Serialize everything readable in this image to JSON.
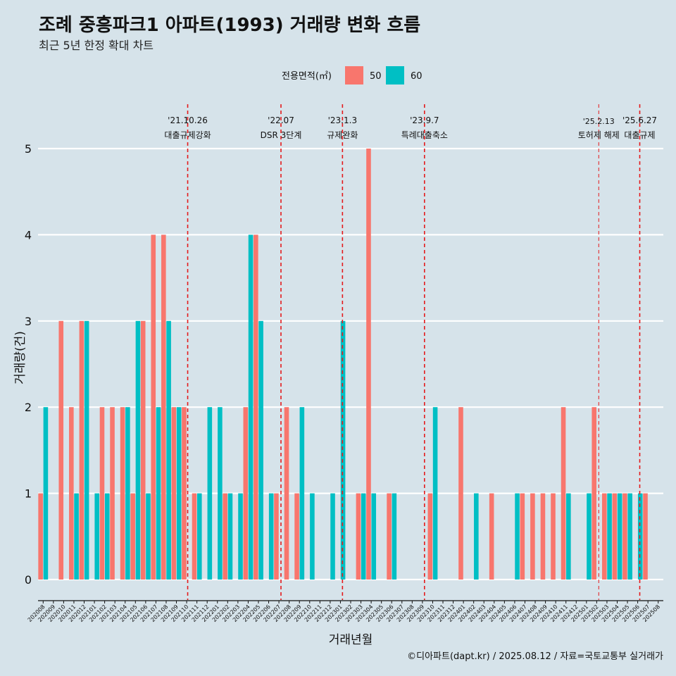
{
  "chart_data": {
    "type": "bar",
    "title": "조례 중흥파크1 아파트(1993) 거래량 변화 흐름",
    "subtitle": "최근 5년 한정 확대 차트",
    "xlabel": "거래년월",
    "ylabel": "거래량(건)",
    "ylim": [
      0,
      5
    ],
    "yticks": [
      0,
      1,
      2,
      3,
      4,
      5
    ],
    "legend": {
      "title": "전용면적(㎡)",
      "position": "top",
      "entries": [
        {
          "name": "50",
          "color": "#F8766D"
        },
        {
          "name": "60",
          "color": "#00BFC4"
        }
      ]
    },
    "categories": [
      "202008",
      "202009",
      "202010",
      "202011",
      "202012",
      "202101",
      "202102",
      "202103",
      "202104",
      "202105",
      "202106",
      "202107",
      "202108",
      "202109",
      "202110",
      "202111",
      "202112",
      "202201",
      "202202",
      "202203",
      "202204",
      "202205",
      "202206",
      "202207",
      "202208",
      "202209",
      "202210",
      "202211",
      "202212",
      "202301",
      "202302",
      "202303",
      "202304",
      "202305",
      "202306",
      "202307",
      "202308",
      "202309",
      "202310",
      "202311",
      "202312",
      "202401",
      "202402",
      "202403",
      "202404",
      "202405",
      "202406",
      "202407",
      "202408",
      "202409",
      "202410",
      "202411",
      "202412",
      "202501",
      "202502",
      "202503",
      "202504",
      "202505",
      "202506",
      "202507",
      "202508"
    ],
    "series": [
      {
        "name": "50",
        "color": "#F8766D",
        "values": [
          1,
          0,
          3,
          2,
          3,
          0,
          2,
          2,
          2,
          1,
          3,
          4,
          4,
          2,
          2,
          1,
          0,
          0,
          1,
          0,
          2,
          4,
          0,
          1,
          2,
          1,
          0,
          0,
          0,
          0,
          0,
          1,
          5,
          0,
          1,
          0,
          0,
          0,
          1,
          0,
          0,
          2,
          0,
          0,
          1,
          0,
          0,
          1,
          1,
          1,
          1,
          2,
          0,
          0,
          2,
          1,
          1,
          1,
          0,
          1,
          0
        ]
      },
      {
        "name": "60",
        "color": "#00BFC4",
        "values": [
          2,
          0,
          0,
          1,
          3,
          1,
          1,
          0,
          2,
          3,
          1,
          2,
          3,
          2,
          0,
          1,
          2,
          2,
          1,
          1,
          4,
          3,
          1,
          0,
          0,
          2,
          1,
          0,
          1,
          3,
          0,
          1,
          1,
          0,
          1,
          0,
          0,
          0,
          2,
          0,
          0,
          0,
          1,
          0,
          0,
          0,
          1,
          0,
          0,
          0,
          0,
          1,
          0,
          1,
          0,
          1,
          1,
          1,
          1,
          0,
          0
        ]
      }
    ],
    "events": [
      {
        "date": "'21.10.26",
        "label": "대출규제강화",
        "position": 14.6
      },
      {
        "date": "'22.07",
        "label": "DSR 3단계",
        "position": 23.7
      },
      {
        "date": "'23.1.3",
        "label": "규제완화",
        "position": 29.7
      },
      {
        "date": "'23.9.7",
        "label": "특례대출축소",
        "position": 37.7
      },
      {
        "date": "'25.2.13",
        "label": "토허제 해제",
        "position": 54.7
      },
      {
        "date": "'25.6.27",
        "label": "대출규제",
        "position": 58.7
      }
    ],
    "caption": "©디아파트(dapt.kr) / 2025.08.12 / 자료=국토교통부 실거래가"
  }
}
